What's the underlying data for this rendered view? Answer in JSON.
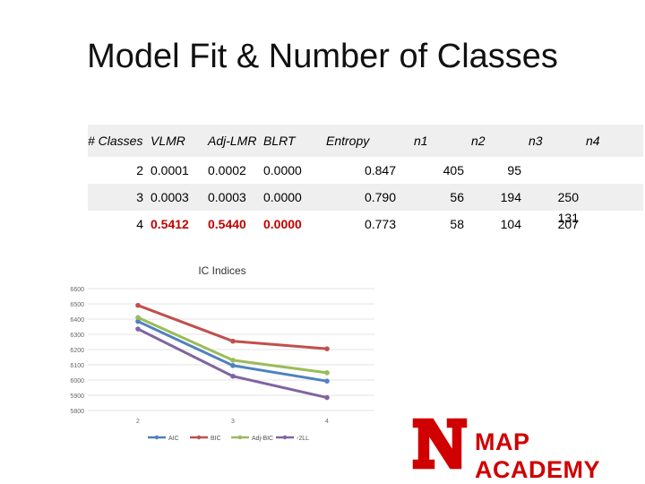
{
  "title": "Model Fit & Number of Classes",
  "table": {
    "headers": [
      "# Classes",
      "VLMR",
      "Adj-LMR",
      "BLRT",
      "Entropy",
      "n1",
      "n2",
      "n3",
      "n4"
    ],
    "rows": [
      {
        "k": "2",
        "vlmr": "0.0001",
        "adj": "0.0002",
        "blrt": "0.0000",
        "entropy": "0.847",
        "n1": "405",
        "n2": "95",
        "n3": "",
        "n4": "",
        "highlight": false
      },
      {
        "k": "3",
        "vlmr": "0.0003",
        "adj": "0.0003",
        "blrt": "0.0000",
        "entropy": "0.790",
        "n1": "56",
        "n2": "194",
        "n3": "250",
        "n4": "",
        "highlight": false
      },
      {
        "k": "4",
        "vlmr": "0.5412",
        "adj": "0.5440",
        "blrt": "0.0000",
        "entropy": "0.773",
        "n1": "58",
        "n2": "104",
        "n3": "207",
        "n4": "131",
        "highlight": true
      }
    ],
    "highlight_color": "#c00000"
  },
  "chart_data": {
    "type": "line",
    "title": "IC Indices",
    "x": [
      2,
      3,
      4
    ],
    "ylim": [
      5800,
      6600
    ],
    "yticks": [
      5800,
      5900,
      6000,
      6100,
      6200,
      6300,
      6400,
      6500,
      6600
    ],
    "grid": true,
    "legend_position": "bottom",
    "series": [
      {
        "name": "AIC",
        "color": "#4f81bd",
        "values": [
          6385,
          6095,
          5993
        ]
      },
      {
        "name": "BIC",
        "color": "#c0504d",
        "values": [
          6490,
          6255,
          6205
        ]
      },
      {
        "name": "Adj-BIC",
        "color": "#9bbb59",
        "values": [
          6410,
          6130,
          6048
        ]
      },
      {
        "name": "-2LL",
        "color": "#8064a2",
        "values": [
          6335,
          6025,
          5885
        ]
      }
    ]
  },
  "logo": {
    "text": "MAP ACADEMY",
    "mark": "N",
    "color": "#d00000"
  }
}
